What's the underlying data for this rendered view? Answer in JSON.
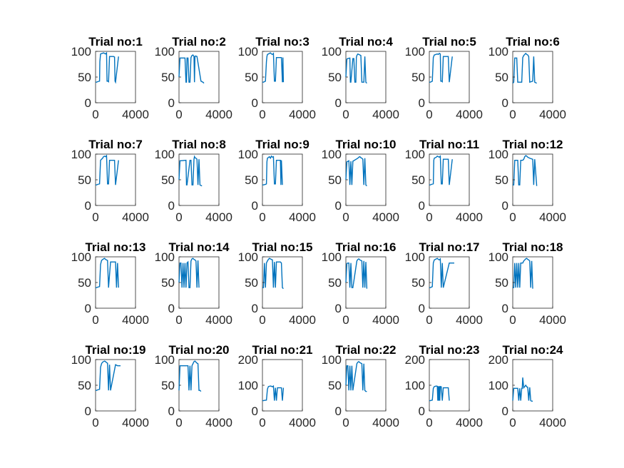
{
  "figure": {
    "series_color": "#0072bd",
    "text_color": "#262626"
  },
  "chart_data": [
    {
      "type": "line",
      "title": "Trial no:1",
      "xlim": [
        0,
        4000
      ],
      "ylim": [
        0,
        100
      ],
      "xticks": [
        "0",
        "4000"
      ],
      "yticks": [
        "0",
        "50",
        "100"
      ],
      "x": [
        0,
        100,
        200,
        400,
        430,
        500,
        800,
        900,
        1000,
        1100,
        1150,
        1250,
        1300,
        1400,
        1800,
        1900,
        1950,
        2000,
        2300
      ],
      "y": [
        40,
        40,
        41,
        42,
        80,
        95,
        97,
        96,
        95,
        97,
        42,
        42,
        41,
        90,
        90,
        89,
        42,
        40,
        90
      ]
    },
    {
      "type": "line",
      "title": "Trial no:2",
      "xlim": [
        0,
        4000
      ],
      "ylim": [
        0,
        100
      ],
      "xticks": [
        "0",
        "4000"
      ],
      "yticks": [
        "0",
        "50",
        "100"
      ],
      "x": [
        0,
        100,
        150,
        600,
        700,
        750,
        800,
        900,
        1000,
        1100,
        1200,
        1300,
        1400,
        1500,
        1550,
        1600,
        1650,
        1800,
        2200,
        2400,
        2500
      ],
      "y": [
        50,
        87,
        87,
        87,
        40,
        40,
        87,
        87,
        40,
        40,
        88,
        92,
        93,
        90,
        40,
        90,
        91,
        90,
        42,
        40,
        38
      ]
    },
    {
      "type": "line",
      "title": "Trial no:3",
      "xlim": [
        0,
        4000
      ],
      "ylim": [
        0,
        100
      ],
      "xticks": [
        "0",
        "4000"
      ],
      "yticks": [
        "0",
        "50",
        "100"
      ],
      "x": [
        0,
        100,
        200,
        300,
        400,
        450,
        500,
        800,
        900,
        1000,
        1100,
        1200,
        1300,
        1400,
        1800,
        1900,
        2000,
        2050,
        2100
      ],
      "y": [
        40,
        40,
        41,
        42,
        80,
        90,
        94,
        97,
        95,
        94,
        96,
        42,
        42,
        88,
        88,
        88,
        40,
        88,
        40
      ]
    },
    {
      "type": "line",
      "title": "Trial no:4",
      "xlim": [
        0,
        4000
      ],
      "ylim": [
        0,
        100
      ],
      "xticks": [
        "0",
        "4000"
      ],
      "yticks": [
        "0",
        "50",
        "100"
      ],
      "x": [
        0,
        100,
        200,
        400,
        450,
        500,
        700,
        800,
        900,
        1000,
        1050,
        1100,
        1200,
        1300,
        1400,
        1500,
        1600,
        1800,
        1900,
        2000,
        2100
      ],
      "y": [
        50,
        85,
        86,
        87,
        40,
        40,
        86,
        86,
        40,
        40,
        88,
        92,
        95,
        94,
        93,
        92,
        40,
        40,
        90,
        40,
        38
      ]
    },
    {
      "type": "line",
      "title": "Trial no:5",
      "xlim": [
        0,
        4000
      ],
      "ylim": [
        0,
        100
      ],
      "xticks": [
        "0",
        "4000"
      ],
      "yticks": [
        "0",
        "50",
        "100"
      ],
      "x": [
        0,
        100,
        200,
        300,
        400,
        500,
        800,
        900,
        1000,
        1100,
        1150,
        1250,
        1300,
        1400,
        1800,
        1900,
        2000,
        2300
      ],
      "y": [
        40,
        40,
        41,
        42,
        88,
        93,
        95,
        94,
        96,
        95,
        42,
        42,
        41,
        90,
        90,
        90,
        40,
        90
      ]
    },
    {
      "type": "line",
      "title": "Trial no:6",
      "xlim": [
        0,
        4000
      ],
      "ylim": [
        0,
        100
      ],
      "xticks": [
        "0",
        "4000"
      ],
      "yticks": [
        "0",
        "50",
        "100"
      ],
      "x": [
        0,
        100,
        200,
        300,
        400,
        500,
        900,
        1000,
        1100,
        1300,
        1400,
        1500,
        1600,
        1700,
        2000,
        2100,
        2200,
        2400
      ],
      "y": [
        38,
        40,
        87,
        87,
        87,
        40,
        40,
        88,
        92,
        96,
        94,
        93,
        90,
        40,
        42,
        90,
        40,
        38
      ]
    },
    {
      "type": "line",
      "title": "Trial no:7",
      "xlim": [
        0,
        4000
      ],
      "ylim": [
        0,
        100
      ],
      "xticks": [
        "0",
        "4000"
      ],
      "yticks": [
        "0",
        "50",
        "100"
      ],
      "x": [
        0,
        100,
        200,
        400,
        500,
        700,
        800,
        900,
        1000,
        1100,
        1200,
        1300,
        1400,
        1800,
        1900,
        2000,
        2300
      ],
      "y": [
        40,
        40,
        41,
        42,
        88,
        92,
        95,
        96,
        95,
        97,
        42,
        42,
        88,
        88,
        88,
        40,
        88
      ]
    },
    {
      "type": "line",
      "title": "Trial no:8",
      "xlim": [
        0,
        4000
      ],
      "ylim": [
        0,
        100
      ],
      "xticks": [
        "0",
        "4000"
      ],
      "yticks": [
        "0",
        "50",
        "100"
      ],
      "x": [
        0,
        100,
        200,
        700,
        750,
        800,
        1100,
        1200,
        1300,
        1400,
        1500,
        1550,
        1600,
        1700,
        1800,
        1900,
        2000,
        2100,
        2300
      ],
      "y": [
        50,
        87,
        87,
        88,
        40,
        40,
        88,
        88,
        40,
        40,
        90,
        95,
        93,
        92,
        90,
        40,
        90,
        40,
        38
      ]
    },
    {
      "type": "line",
      "title": "Trial no:9",
      "xlim": [
        0,
        4000
      ],
      "ylim": [
        0,
        100
      ],
      "xticks": [
        "0",
        "4000"
      ],
      "yticks": [
        "0",
        "50",
        "100"
      ],
      "x": [
        0,
        100,
        300,
        400,
        450,
        500,
        700,
        800,
        900,
        1000,
        1100,
        1200,
        1300,
        1400,
        1800,
        1850,
        1900,
        2000
      ],
      "y": [
        40,
        40,
        41,
        42,
        85,
        92,
        95,
        92,
        96,
        94,
        95,
        42,
        42,
        88,
        88,
        40,
        88,
        40
      ]
    },
    {
      "type": "line",
      "title": "Trial no:10",
      "xlim": [
        0,
        4000
      ],
      "ylim": [
        0,
        100
      ],
      "xticks": [
        "0",
        "4000"
      ],
      "yticks": [
        "0",
        "50",
        "100"
      ],
      "x": [
        0,
        100,
        200,
        300,
        400,
        500,
        600,
        700,
        1200,
        1300,
        1400,
        1500,
        1600,
        1700,
        1800,
        1900,
        2000,
        2100
      ],
      "y": [
        50,
        85,
        86,
        87,
        40,
        86,
        40,
        86,
        92,
        94,
        95,
        93,
        92,
        90,
        40,
        92,
        40,
        38
      ]
    },
    {
      "type": "line",
      "title": "Trial no:11",
      "xlim": [
        0,
        4000
      ],
      "ylim": [
        0,
        100
      ],
      "xticks": [
        "0",
        "4000"
      ],
      "yticks": [
        "0",
        "50",
        "100"
      ],
      "x": [
        0,
        100,
        200,
        400,
        450,
        500,
        700,
        800,
        900,
        1000,
        1100,
        1200,
        1300,
        1400,
        1800,
        1900,
        2000,
        2300
      ],
      "y": [
        40,
        40,
        41,
        42,
        88,
        92,
        94,
        96,
        95,
        94,
        96,
        42,
        42,
        90,
        90,
        90,
        40,
        90
      ]
    },
    {
      "type": "line",
      "title": "Trial no:12",
      "xlim": [
        0,
        4000
      ],
      "ylim": [
        0,
        100
      ],
      "xticks": [
        "0",
        "4000"
      ],
      "yticks": [
        "0",
        "50",
        "100"
      ],
      "x": [
        0,
        100,
        200,
        500,
        600,
        700,
        800,
        1000,
        1100,
        1200,
        1300,
        1400,
        1500,
        1700,
        2000,
        2100,
        2200,
        2400
      ],
      "y": [
        40,
        40,
        88,
        88,
        40,
        40,
        88,
        88,
        90,
        95,
        97,
        96,
        94,
        92,
        90,
        40,
        90,
        38
      ]
    },
    {
      "type": "line",
      "title": "Trial no:13",
      "xlim": [
        0,
        4000
      ],
      "ylim": [
        0,
        100
      ],
      "xticks": [
        "0",
        "4000"
      ],
      "yticks": [
        "0",
        "50",
        "100"
      ],
      "x": [
        0,
        100,
        200,
        400,
        500,
        600,
        800,
        900,
        1000,
        1100,
        1200,
        1300,
        1500,
        1800,
        2000,
        2100,
        2200,
        2300
      ],
      "y": [
        40,
        40,
        41,
        42,
        85,
        93,
        96,
        97,
        95,
        94,
        93,
        40,
        90,
        90,
        90,
        40,
        88,
        40
      ]
    },
    {
      "type": "line",
      "title": "Trial no:14",
      "xlim": [
        0,
        4000
      ],
      "ylim": [
        0,
        100
      ],
      "xticks": [
        "0",
        "4000"
      ],
      "yticks": [
        "0",
        "50",
        "100"
      ],
      "x": [
        0,
        100,
        200,
        300,
        400,
        500,
        600,
        700,
        800,
        900,
        1000,
        1100,
        1200,
        1300,
        1400,
        1500,
        1600,
        1700,
        1800,
        1900,
        2000
      ],
      "y": [
        50,
        88,
        88,
        40,
        88,
        40,
        88,
        40,
        88,
        90,
        40,
        40,
        92,
        96,
        97,
        95,
        94,
        92,
        40,
        93,
        40
      ]
    },
    {
      "type": "line",
      "title": "Trial no:15",
      "xlim": [
        0,
        4000
      ],
      "ylim": [
        0,
        100
      ],
      "xticks": [
        "0",
        "4000"
      ],
      "yticks": [
        "0",
        "50",
        "100"
      ],
      "x": [
        0,
        100,
        200,
        300,
        400,
        500,
        600,
        700,
        800,
        900,
        1000,
        1100,
        1200,
        1300,
        1400,
        1800,
        1900,
        2000,
        2100
      ],
      "y": [
        40,
        40,
        88,
        40,
        88,
        92,
        95,
        97,
        96,
        95,
        94,
        40,
        90,
        40,
        90,
        90,
        88,
        40,
        38
      ]
    },
    {
      "type": "line",
      "title": "Trial no:16",
      "xlim": [
        0,
        4000
      ],
      "ylim": [
        0,
        100
      ],
      "xticks": [
        "0",
        "4000"
      ],
      "yticks": [
        "0",
        "50",
        "100"
      ],
      "x": [
        0,
        100,
        200,
        300,
        400,
        500,
        600,
        700,
        1100,
        1200,
        1300,
        1400,
        1500,
        1600,
        1700,
        1800,
        1900,
        2000,
        2100
      ],
      "y": [
        50,
        87,
        88,
        88,
        40,
        88,
        40,
        40,
        92,
        95,
        96,
        94,
        93,
        92,
        40,
        92,
        40,
        90,
        38
      ]
    },
    {
      "type": "line",
      "title": "Trial no:17",
      "xlim": [
        0,
        4000
      ],
      "ylim": [
        0,
        100
      ],
      "xticks": [
        "0",
        "4000"
      ],
      "yticks": [
        "0",
        "50",
        "100"
      ],
      "x": [
        0,
        100,
        200,
        300,
        400,
        500,
        700,
        800,
        900,
        1000,
        1100,
        1200,
        1300,
        1400,
        2000,
        2200,
        2500
      ],
      "y": [
        40,
        40,
        41,
        42,
        88,
        94,
        96,
        97,
        95,
        94,
        96,
        40,
        88,
        40,
        88,
        88,
        88
      ]
    },
    {
      "type": "line",
      "title": "Trial no:18",
      "xlim": [
        0,
        4000
      ],
      "ylim": [
        0,
        100
      ],
      "xticks": [
        "0",
        "4000"
      ],
      "yticks": [
        "0",
        "50",
        "100"
      ],
      "x": [
        0,
        100,
        200,
        300,
        400,
        500,
        600,
        700,
        800,
        1000,
        1100,
        1200,
        1300,
        1400,
        1500,
        1600,
        1700,
        1800,
        1900,
        2000
      ],
      "y": [
        40,
        40,
        88,
        40,
        88,
        40,
        88,
        40,
        88,
        88,
        92,
        94,
        96,
        97,
        95,
        94,
        92,
        40,
        92,
        38
      ]
    },
    {
      "type": "line",
      "title": "Trial no:19",
      "xlim": [
        0,
        4000
      ],
      "ylim": [
        0,
        100
      ],
      "xticks": [
        "0",
        "4000"
      ],
      "yticks": [
        "0",
        "50",
        "100"
      ],
      "x": [
        0,
        100,
        200,
        400,
        500,
        600,
        700,
        900,
        1000,
        1100,
        1200,
        1300,
        1400,
        1500,
        2000,
        2200,
        2500
      ],
      "y": [
        40,
        40,
        41,
        42,
        85,
        92,
        95,
        97,
        96,
        94,
        93,
        40,
        90,
        40,
        90,
        88,
        88
      ]
    },
    {
      "type": "line",
      "title": "Trial no:20",
      "xlim": [
        0,
        4000
      ],
      "ylim": [
        0,
        100
      ],
      "xticks": [
        "0",
        "4000"
      ],
      "yticks": [
        "0",
        "50",
        "100"
      ],
      "x": [
        0,
        100,
        200,
        900,
        1000,
        1100,
        1200,
        1300,
        1400,
        1500,
        1600,
        1700,
        1800,
        1900,
        2000,
        2100,
        2200
      ],
      "y": [
        40,
        88,
        88,
        88,
        40,
        88,
        40,
        88,
        92,
        96,
        97,
        95,
        93,
        92,
        40,
        40,
        38
      ]
    },
    {
      "type": "line",
      "title": "Trial no:21",
      "xlim": [
        0,
        4000
      ],
      "ylim": [
        0,
        200
      ],
      "xticks": [
        "0",
        "4000"
      ],
      "yticks": [
        "0",
        "100",
        "200"
      ],
      "x": [
        0,
        100,
        200,
        400,
        500,
        600,
        800,
        900,
        1000,
        1100,
        1200,
        1300,
        1400,
        1500,
        1900,
        2000,
        2100
      ],
      "y": [
        40,
        40,
        41,
        42,
        85,
        95,
        97,
        96,
        94,
        97,
        40,
        90,
        40,
        90,
        90,
        40,
        90
      ]
    },
    {
      "type": "line",
      "title": "Trial no:22",
      "xlim": [
        0,
        4000
      ],
      "ylim": [
        0,
        100
      ],
      "xticks": [
        "0",
        "4000"
      ],
      "yticks": [
        "0",
        "50",
        "100"
      ],
      "x": [
        0,
        100,
        200,
        300,
        400,
        500,
        600,
        700,
        1100,
        1200,
        1300,
        1400,
        1500,
        1600,
        1700,
        1800,
        1900,
        2000,
        2100
      ],
      "y": [
        50,
        88,
        88,
        40,
        88,
        40,
        88,
        40,
        92,
        95,
        96,
        94,
        93,
        92,
        40,
        92,
        40,
        38,
        38
      ]
    },
    {
      "type": "line",
      "title": "Trial no:23",
      "xlim": [
        0,
        4000
      ],
      "ylim": [
        0,
        200
      ],
      "xticks": [
        "0",
        "4000"
      ],
      "yticks": [
        "0",
        "100",
        "200"
      ],
      "x": [
        0,
        100,
        200,
        300,
        400,
        500,
        700,
        800,
        850,
        900,
        950,
        1000,
        1050,
        1100,
        1200,
        1300,
        1400,
        1500,
        1900,
        2000
      ],
      "y": [
        40,
        40,
        41,
        42,
        88,
        95,
        97,
        96,
        40,
        96,
        40,
        96,
        40,
        95,
        94,
        40,
        90,
        90,
        90,
        40
      ]
    },
    {
      "type": "line",
      "title": "Trial no:24",
      "xlim": [
        0,
        4000
      ],
      "ylim": [
        0,
        200
      ],
      "xticks": [
        "0",
        "4000"
      ],
      "yticks": [
        "0",
        "100",
        "200"
      ],
      "x": [
        0,
        100,
        200,
        500,
        600,
        700,
        800,
        900,
        950,
        1000,
        1100,
        1200,
        1300,
        1400,
        1500,
        1600,
        1700,
        1800,
        1900,
        2000
      ],
      "y": [
        40,
        88,
        88,
        88,
        40,
        88,
        40,
        88,
        88,
        130,
        90,
        95,
        100,
        94,
        92,
        40,
        92,
        40,
        38,
        38
      ]
    }
  ]
}
